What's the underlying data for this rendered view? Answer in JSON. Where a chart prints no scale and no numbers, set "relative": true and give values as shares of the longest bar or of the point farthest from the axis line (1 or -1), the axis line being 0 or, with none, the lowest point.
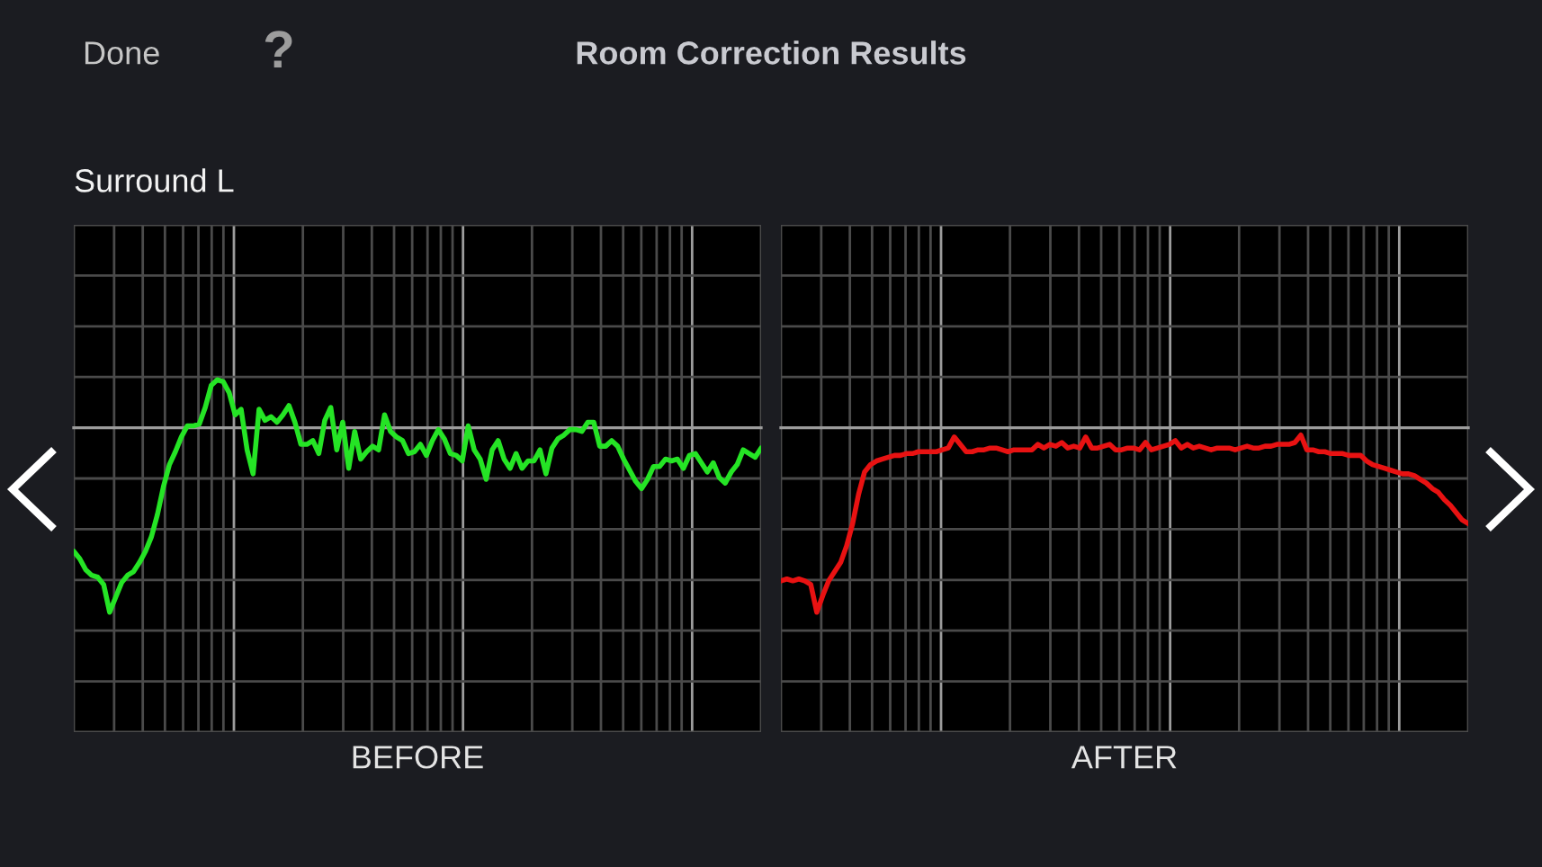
{
  "chart_data": [
    {
      "type": "line",
      "title": "Room Correction Results",
      "subtitle": "Surround L",
      "xlabel": "BEFORE",
      "annotations": [
        "Done",
        "?"
      ],
      "relative": true,
      "grid": true,
      "tick_labels": false,
      "categories": [
        null,
        null,
        null,
        null,
        null,
        null,
        null,
        null,
        null,
        null,
        null,
        null,
        null,
        null,
        null,
        null,
        null,
        null,
        null,
        null,
        null,
        null,
        null,
        null,
        null,
        null,
        null,
        null,
        null,
        null,
        null,
        null,
        null,
        null,
        null,
        null,
        null,
        null,
        null,
        null,
        null,
        null,
        null,
        null,
        null,
        null,
        null,
        null,
        null,
        null,
        null,
        null,
        null,
        null,
        null,
        null,
        null,
        null,
        null,
        null,
        null,
        null,
        null,
        null,
        null,
        null,
        null,
        null,
        null,
        null,
        null,
        null,
        null,
        null,
        null,
        null,
        null,
        null,
        null,
        null,
        null,
        null,
        null,
        null,
        null,
        null,
        null,
        null,
        null,
        null,
        null,
        null,
        null,
        null,
        null,
        null,
        null,
        null,
        null,
        null,
        null,
        null,
        null,
        null,
        null,
        null,
        null,
        null,
        null,
        null,
        null,
        null,
        null,
        null,
        null,
        null
      ],
      "series": [
        {
          "color": "#25e425",
          "values": [
            -0.67,
            -0.71,
            -0.77,
            -0.8,
            -0.81,
            -0.85,
            -1,
            -0.92,
            -0.84,
            -0.8,
            -0.78,
            -0.73,
            -0.67,
            -0.59,
            -0.47,
            -0.32,
            -0.2,
            -0.13,
            -0.05,
            0.01,
            0.01,
            0.02,
            0.11,
            0.23,
            0.26,
            0.25,
            0.19,
            0.07,
            0.1,
            -0.12,
            -0.25,
            0.1,
            0.04,
            0.06,
            0.03,
            0.07,
            0.12,
            0.03,
            -0.09,
            -0.09,
            -0.07,
            -0.14,
            0.04,
            0.11,
            -0.12,
            0.03,
            -0.22,
            -0.02,
            -0.17,
            -0.13,
            -0.1,
            -0.12,
            0.07,
            -0.02,
            -0.05,
            -0.07,
            -0.14,
            -0.13,
            -0.09,
            -0.15,
            -0.07,
            -0.01,
            -0.06,
            -0.14,
            -0.15,
            -0.18,
            0.01,
            -0.12,
            -0.17,
            -0.28,
            -0.12,
            -0.07,
            -0.17,
            -0.22,
            -0.14,
            -0.22,
            -0.18,
            -0.18,
            -0.12,
            -0.25,
            -0.11,
            -0.06,
            -0.04,
            -0.01,
            -0.01,
            -0.02,
            0.03,
            0.03,
            -0.1,
            -0.1,
            -0.07,
            -0.1,
            -0.17,
            -0.23,
            -0.29,
            -0.33,
            -0.28,
            -0.21,
            -0.21,
            -0.17,
            -0.18,
            -0.17,
            -0.22,
            -0.15,
            -0.14,
            -0.19,
            -0.24,
            -0.19,
            -0.27,
            -0.3,
            -0.24,
            -0.2,
            -0.12,
            -0.14,
            -0.16,
            -0.11
          ]
        }
      ]
    },
    {
      "type": "line",
      "xlabel": "AFTER",
      "relative": true,
      "grid": true,
      "tick_labels": false,
      "categories": [
        null,
        null,
        null,
        null,
        null,
        null,
        null,
        null,
        null,
        null,
        null,
        null,
        null,
        null,
        null,
        null,
        null,
        null,
        null,
        null,
        null,
        null,
        null,
        null,
        null,
        null,
        null,
        null,
        null,
        null,
        null,
        null,
        null,
        null,
        null,
        null,
        null,
        null,
        null,
        null,
        null,
        null,
        null,
        null,
        null,
        null,
        null,
        null,
        null,
        null,
        null,
        null,
        null,
        null,
        null,
        null,
        null,
        null,
        null,
        null,
        null,
        null,
        null,
        null,
        null,
        null,
        null,
        null,
        null,
        null,
        null,
        null,
        null,
        null,
        null,
        null,
        null,
        null,
        null,
        null,
        null,
        null,
        null,
        null,
        null,
        null,
        null,
        null,
        null,
        null,
        null,
        null,
        null,
        null,
        null,
        null,
        null,
        null,
        null,
        null,
        null,
        null,
        null,
        null,
        null,
        null,
        null,
        null,
        null,
        null,
        null,
        null,
        null,
        null,
        null,
        null
      ],
      "series": [
        {
          "color": "#e81212",
          "values": [
            -0.83,
            -0.82,
            -0.83,
            -0.82,
            -0.83,
            -0.85,
            -1,
            -0.91,
            -0.83,
            -0.78,
            -0.73,
            -0.64,
            -0.52,
            -0.36,
            -0.24,
            -0.2,
            -0.18,
            -0.17,
            -0.16,
            -0.15,
            -0.15,
            -0.14,
            -0.14,
            -0.13,
            -0.13,
            -0.13,
            -0.13,
            -0.12,
            -0.11,
            -0.05,
            -0.09,
            -0.13,
            -0.13,
            -0.12,
            -0.12,
            -0.11,
            -0.11,
            -0.12,
            -0.13,
            -0.12,
            -0.12,
            -0.12,
            -0.12,
            -0.09,
            -0.11,
            -0.09,
            -0.1,
            -0.08,
            -0.11,
            -0.1,
            -0.11,
            -0.05,
            -0.11,
            -0.11,
            -0.1,
            -0.09,
            -0.12,
            -0.12,
            -0.11,
            -0.11,
            -0.12,
            -0.08,
            -0.12,
            -0.11,
            -0.1,
            -0.09,
            -0.07,
            -0.11,
            -0.09,
            -0.11,
            -0.1,
            -0.11,
            -0.12,
            -0.11,
            -0.11,
            -0.11,
            -0.12,
            -0.11,
            -0.1,
            -0.11,
            -0.11,
            -0.1,
            -0.1,
            -0.09,
            -0.09,
            -0.09,
            -0.08,
            -0.04,
            -0.12,
            -0.12,
            -0.13,
            -0.13,
            -0.14,
            -0.14,
            -0.14,
            -0.15,
            -0.15,
            -0.15,
            -0.18,
            -0.2,
            -0.21,
            -0.22,
            -0.23,
            -0.24,
            -0.25,
            -0.25,
            -0.26,
            -0.28,
            -0.3,
            -0.33,
            -0.35,
            -0.39,
            -0.42,
            -0.46,
            -0.5,
            -0.52
          ]
        }
      ]
    }
  ]
}
